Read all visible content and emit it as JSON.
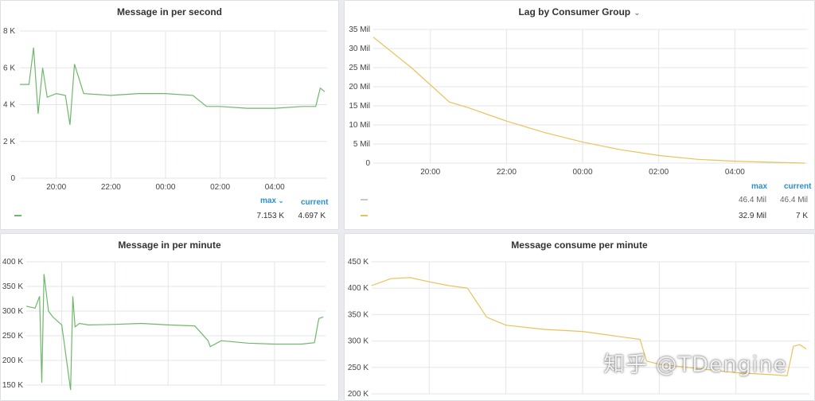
{
  "colors": {
    "green": "#6fb86a",
    "yellow": "#e8c35a",
    "legend_header": "#2b8fce"
  },
  "panels": {
    "p1": {
      "title": "Message in per second",
      "y_ticks": [
        "8 K",
        "6 K",
        "4 K",
        "2 K",
        "0"
      ],
      "x_ticks": [
        "20:00",
        "22:00",
        "00:00",
        "02:00",
        "04:00"
      ],
      "legend": {
        "max_label": "max",
        "max_sort_icon": "chevron-down-icon",
        "current_label": "current",
        "max_value": "7.153 K",
        "current_value": "4.697 K"
      }
    },
    "p2": {
      "title": "Lag by Consumer Group",
      "title_icon": "chevron-down-icon",
      "y_ticks": [
        "35 Mil",
        "30 Mil",
        "25 Mil",
        "20 Mil",
        "15 Mil",
        "10 Mil",
        "5 Mil",
        "0"
      ],
      "x_ticks": [
        "20:00",
        "22:00",
        "00:00",
        "02:00",
        "04:00"
      ],
      "legend": {
        "max_label": "max",
        "current_label": "current",
        "rows": [
          {
            "max": "46.4 Mil",
            "current": "46.4 Mil"
          },
          {
            "max": "32.9 Mil",
            "current": "7 K"
          }
        ]
      }
    },
    "p3": {
      "title": "Message in per minute",
      "y_ticks": [
        "400 K",
        "350 K",
        "300 K",
        "250 K",
        "200 K",
        "150 K"
      ]
    },
    "p4": {
      "title": "Message consume per minute",
      "y_ticks": [
        "450 K",
        "400 K",
        "350 K",
        "300 K",
        "250 K",
        "200 K"
      ]
    }
  },
  "watermark": "知乎 @TDengine",
  "chart_data": [
    {
      "type": "line",
      "title": "Message in per second",
      "x": [
        "18:40",
        "19:00",
        "19:10",
        "19:20",
        "19:30",
        "19:40",
        "20:00",
        "20:20",
        "20:30",
        "20:40",
        "21:00",
        "22:00",
        "23:00",
        "00:00",
        "01:00",
        "01:30",
        "02:00",
        "03:00",
        "04:00",
        "05:00",
        "05:30",
        "05:40",
        "05:50"
      ],
      "series": [
        {
          "values": [
            5.1,
            5.1,
            7.1,
            3.5,
            6.0,
            4.4,
            4.6,
            4.5,
            2.9,
            6.2,
            4.6,
            4.5,
            4.6,
            4.6,
            4.5,
            3.9,
            3.9,
            3.8,
            3.8,
            3.9,
            3.9,
            4.9,
            4.7
          ]
        }
      ],
      "ylim": [
        0,
        8
      ],
      "y_unit": "K",
      "grid": true
    },
    {
      "type": "line",
      "title": "Lag by Consumer Group",
      "x": [
        "18:30",
        "19:30",
        "20:30",
        "21:00",
        "22:00",
        "23:00",
        "00:00",
        "01:00",
        "02:00",
        "03:00",
        "04:00",
        "05:00",
        "05:50"
      ],
      "series": [
        {
          "values": [
            33,
            25,
            16,
            14.5,
            11,
            8,
            5.5,
            3.5,
            2,
            1,
            0.5,
            0.2,
            0
          ]
        }
      ],
      "ylim": [
        0,
        35
      ],
      "y_unit": "Mil",
      "grid": true
    },
    {
      "type": "line",
      "title": "Message in per minute",
      "x": [
        "18:40",
        "19:00",
        "19:10",
        "19:15",
        "19:20",
        "19:30",
        "19:40",
        "20:00",
        "20:20",
        "20:25",
        "20:30",
        "20:40",
        "21:00",
        "22:00",
        "23:00",
        "00:00",
        "01:00",
        "01:30",
        "01:35",
        "02:00",
        "03:00",
        "04:00",
        "05:00",
        "05:30",
        "05:40",
        "05:50"
      ],
      "series": [
        {
          "values": [
            310,
            306,
            330,
            155,
            375,
            300,
            288,
            272,
            140,
            330,
            268,
            275,
            272,
            273,
            275,
            272,
            270,
            240,
            228,
            240,
            235,
            233,
            233,
            236,
            285,
            288
          ]
        }
      ],
      "ylim": [
        150,
        400
      ],
      "y_unit": "K",
      "grid": true
    },
    {
      "type": "line",
      "title": "Message consume per minute",
      "x": [
        "18:30",
        "19:00",
        "19:30",
        "20:00",
        "20:30",
        "21:00",
        "21:30",
        "22:00",
        "23:00",
        "00:00",
        "01:00",
        "01:30",
        "01:40",
        "02:00",
        "03:00",
        "04:00",
        "05:00",
        "05:20",
        "05:30",
        "05:40",
        "05:50"
      ],
      "series": [
        {
          "values": [
            405,
            418,
            420,
            412,
            405,
            400,
            345,
            330,
            322,
            318,
            308,
            303,
            262,
            256,
            248,
            240,
            236,
            234,
            290,
            293,
            285
          ]
        }
      ],
      "ylim": [
        200,
        450
      ],
      "y_unit": "K",
      "grid": true
    }
  ]
}
